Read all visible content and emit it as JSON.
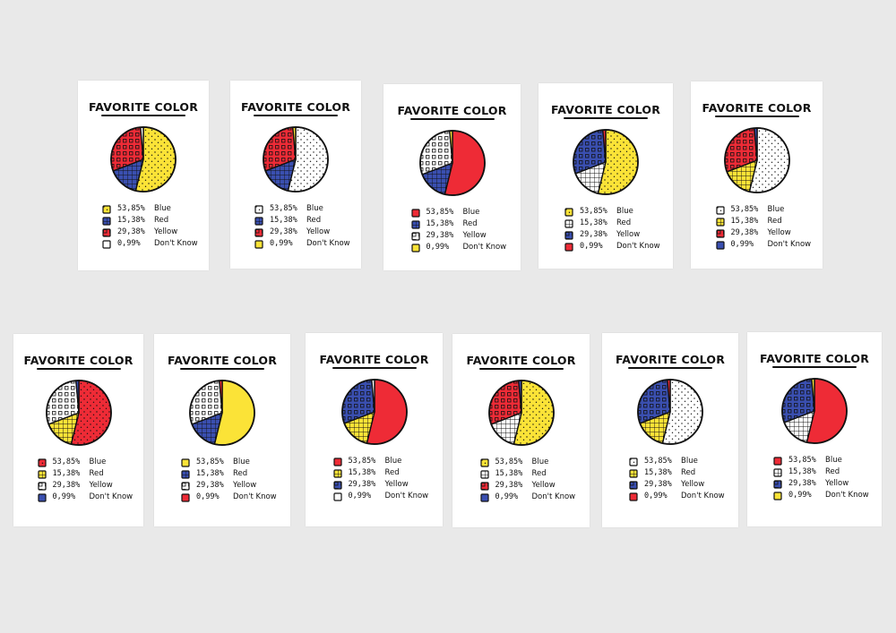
{
  "colors": {
    "blue": "#3a4fb0",
    "red": "#ee2b36",
    "yellow": "#fbe337",
    "white": "#ffffff",
    "ink": "#111111",
    "background": "#e9e9e9"
  },
  "chart_data": [
    {
      "type": "pie",
      "title": "FAVORITE COLOR",
      "labels": [
        "Blue",
        "Red",
        "Yellow",
        "Don't Know"
      ],
      "pct_text": [
        "53,85%",
        "15,38%",
        "29,38%",
        "0,99%"
      ],
      "values": [
        53.85,
        15.38,
        29.38,
        0.99
      ],
      "fills": [
        "yellow",
        "blue",
        "red",
        "white"
      ],
      "patterns": [
        "dots",
        "grid",
        "squares",
        "plain"
      ]
    },
    {
      "type": "pie",
      "title": "FAVORITE COLOR",
      "labels": [
        "Blue",
        "Red",
        "Yellow",
        "Don't Know"
      ],
      "pct_text": [
        "53,85%",
        "15,38%",
        "29,38%",
        "0,99%"
      ],
      "values": [
        53.85,
        15.38,
        29.38,
        0.99
      ],
      "fills": [
        "white",
        "blue",
        "red",
        "yellow"
      ],
      "patterns": [
        "dots",
        "grid",
        "squares",
        "plain"
      ]
    },
    {
      "type": "pie",
      "title": "FAVORITE COLOR",
      "labels": [
        "Blue",
        "Red",
        "Yellow",
        "Don't Know"
      ],
      "pct_text": [
        "53,85%",
        "15,38%",
        "29,38%",
        "0,99%"
      ],
      "values": [
        53.85,
        15.38,
        29.38,
        0.99
      ],
      "fills": [
        "red",
        "blue",
        "white",
        "yellow"
      ],
      "patterns": [
        "plain",
        "grid",
        "squares",
        "plain"
      ]
    },
    {
      "type": "pie",
      "title": "FAVORITE COLOR",
      "labels": [
        "Blue",
        "Red",
        "Yellow",
        "Don't Know"
      ],
      "pct_text": [
        "53,85%",
        "15,38%",
        "29,38%",
        "0,99%"
      ],
      "values": [
        53.85,
        15.38,
        29.38,
        0.99
      ],
      "fills": [
        "yellow",
        "white",
        "blue",
        "red"
      ],
      "patterns": [
        "dots",
        "grid",
        "squares",
        "plain"
      ]
    },
    {
      "type": "pie",
      "title": "FAVORITE COLOR",
      "labels": [
        "Blue",
        "Red",
        "Yellow",
        "Don't Know"
      ],
      "pct_text": [
        "53,85%",
        "15,38%",
        "29,38%",
        "0,99%"
      ],
      "values": [
        53.85,
        15.38,
        29.38,
        0.99
      ],
      "fills": [
        "white",
        "yellow",
        "red",
        "blue"
      ],
      "patterns": [
        "dots",
        "grid",
        "squares",
        "plain"
      ]
    },
    {
      "type": "pie",
      "title": "FAVORITE COLOR",
      "labels": [
        "Blue",
        "Red",
        "Yellow",
        "Don't Know"
      ],
      "pct_text": [
        "53,85%",
        "15,38%",
        "29,38%",
        "0,99%"
      ],
      "values": [
        53.85,
        15.38,
        29.38,
        0.99
      ],
      "fills": [
        "red",
        "yellow",
        "white",
        "blue"
      ],
      "patterns": [
        "dots",
        "grid",
        "squares",
        "plain"
      ]
    },
    {
      "type": "pie",
      "title": "FAVORITE COLOR",
      "labels": [
        "Blue",
        "Red",
        "Yellow",
        "Don't Know"
      ],
      "pct_text": [
        "53,85%",
        "15,38%",
        "29,38%",
        "0,99%"
      ],
      "values": [
        53.85,
        15.38,
        29.38,
        0.99
      ],
      "fills": [
        "yellow",
        "blue",
        "white",
        "red"
      ],
      "patterns": [
        "plain",
        "grid",
        "squares",
        "plain"
      ]
    },
    {
      "type": "pie",
      "title": "FAVORITE COLOR",
      "labels": [
        "Blue",
        "Red",
        "Yellow",
        "Don't Know"
      ],
      "pct_text": [
        "53,85%",
        "15,38%",
        "29,38%",
        "0,99%"
      ],
      "values": [
        53.85,
        15.38,
        29.38,
        0.99
      ],
      "fills": [
        "red",
        "yellow",
        "blue",
        "white"
      ],
      "patterns": [
        "plain",
        "grid",
        "squares",
        "plain"
      ]
    },
    {
      "type": "pie",
      "title": "FAVORITE COLOR",
      "labels": [
        "Blue",
        "Red",
        "Yellow",
        "Don't Know"
      ],
      "pct_text": [
        "53,85%",
        "15,38%",
        "29,38%",
        "0,99%"
      ],
      "values": [
        53.85,
        15.38,
        29.38,
        0.99
      ],
      "fills": [
        "yellow",
        "white",
        "red",
        "blue"
      ],
      "patterns": [
        "dots",
        "grid",
        "squares",
        "plain"
      ]
    },
    {
      "type": "pie",
      "title": "FAVORITE COLOR",
      "labels": [
        "Blue",
        "Red",
        "Yellow",
        "Don't Know"
      ],
      "pct_text": [
        "53,85%",
        "15,38%",
        "29,38%",
        "0,99%"
      ],
      "values": [
        53.85,
        15.38,
        29.38,
        0.99
      ],
      "fills": [
        "white",
        "yellow",
        "blue",
        "red"
      ],
      "patterns": [
        "dots",
        "grid",
        "squares",
        "plain"
      ]
    },
    {
      "type": "pie",
      "title": "FAVORITE COLOR",
      "labels": [
        "Blue",
        "Red",
        "Yellow",
        "Don't Know"
      ],
      "pct_text": [
        "53,85%",
        "15,38%",
        "29,38%",
        "0,99%"
      ],
      "values": [
        53.85,
        15.38,
        29.38,
        0.99
      ],
      "fills": [
        "red",
        "white",
        "blue",
        "yellow"
      ],
      "patterns": [
        "plain",
        "grid",
        "squares",
        "plain"
      ]
    }
  ]
}
